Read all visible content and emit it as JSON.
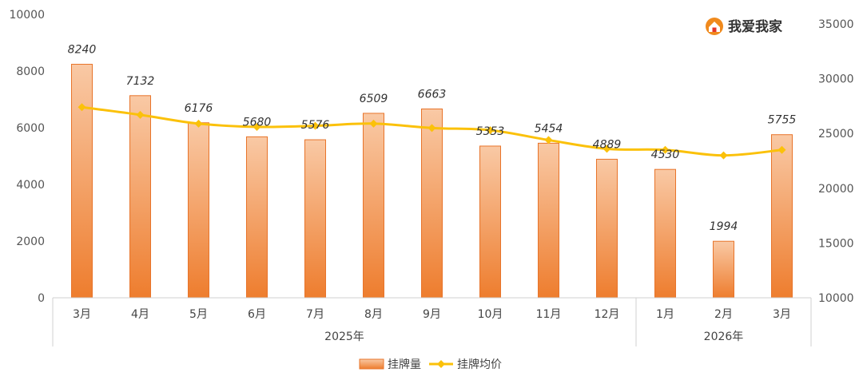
{
  "chart_data": {
    "type": "bar",
    "categories": [
      "3月",
      "4月",
      "5月",
      "6月",
      "7月",
      "8月",
      "9月",
      "10月",
      "11月",
      "12月",
      "1月",
      "2月",
      "3月"
    ],
    "groups": [
      {
        "label": "2025年",
        "start": 0,
        "end": 9
      },
      {
        "label": "2026年",
        "start": 10,
        "end": 12
      }
    ],
    "series": [
      {
        "name": "挂牌量",
        "type": "bar",
        "axis": "left",
        "values": [
          8240,
          7132,
          6176,
          5680,
          5576,
          6509,
          6663,
          5353,
          5454,
          4889,
          4530,
          1994,
          5755
        ]
      },
      {
        "name": "挂牌均价",
        "type": "line",
        "axis": "right",
        "values": [
          27400,
          26700,
          25900,
          25600,
          25700,
          25900,
          25500,
          25300,
          24400,
          23600,
          23500,
          23000,
          23500
        ]
      }
    ],
    "y_left": {
      "min": 0,
      "max": 10000,
      "ticks": [
        "0",
        "2000",
        "4000",
        "6000",
        "8000",
        "10000"
      ]
    },
    "y_right": {
      "min": 10000,
      "max": 35000,
      "ticks": [
        "10000",
        "15000",
        "20000",
        "25000",
        "30000",
        "35000"
      ]
    },
    "grid": false,
    "legend_position": "bottom",
    "colors": {
      "bar_top": "#f9c9a5",
      "bar_bottom": "#ee7d2e",
      "bar_edge": "#e8742a",
      "line": "#fbc10a"
    }
  },
  "logo": {
    "text": "我爱我家",
    "icon": "house-logo-icon",
    "color": "#f08a1d"
  }
}
